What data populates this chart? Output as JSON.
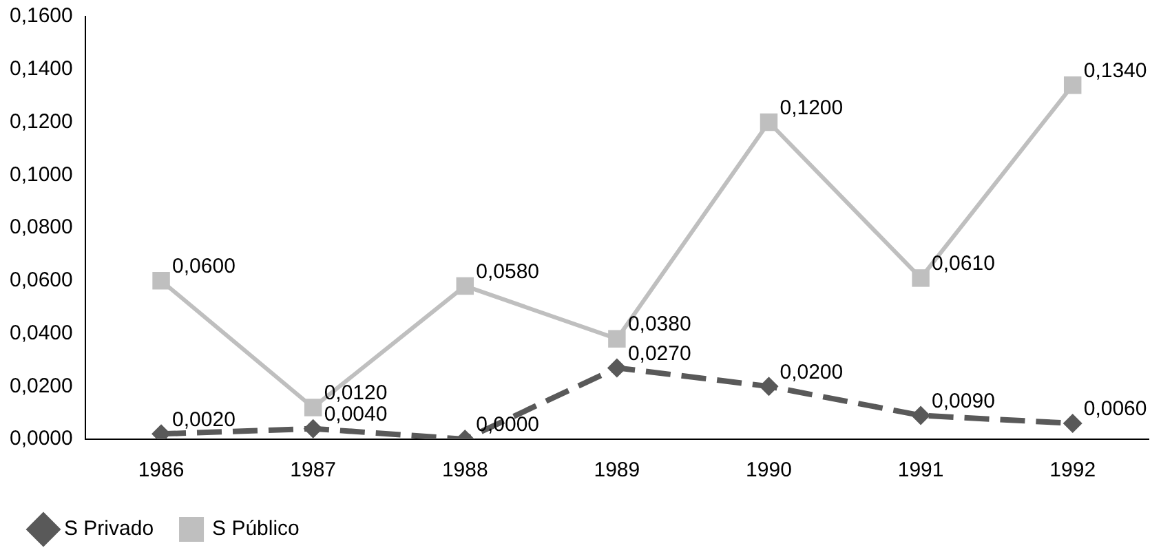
{
  "chart_data": {
    "type": "line",
    "categories": [
      "1986",
      "1987",
      "1988",
      "1989",
      "1990",
      "1991",
      "1992"
    ],
    "series": [
      {
        "name": "S Privado",
        "color": "#595959",
        "marker": "diamond",
        "line_style": "dashed",
        "values": [
          0.002,
          0.004,
          0,
          0.027,
          0.02,
          0.009,
          0.006
        ],
        "value_labels": [
          "0,0020",
          "0,0040",
          "0,0000",
          "0,0270",
          "0,0200",
          "0,0090",
          "0,0060"
        ]
      },
      {
        "name": "S Público",
        "color": "#bfbfbf",
        "marker": "square",
        "line_style": "solid",
        "values": [
          0.06,
          0.012,
          0.058,
          0.038,
          0.12,
          0.061,
          0.134
        ],
        "value_labels": [
          "0,0600",
          "0,0120",
          "0,0580",
          "0,0380",
          "0,1200",
          "0,0610",
          "0,1340"
        ]
      }
    ],
    "ylim": [
      0,
      0.16
    ],
    "yticks": [
      {
        "value": 0,
        "label": "0,0000"
      },
      {
        "value": 0.02,
        "label": "0,0200"
      },
      {
        "value": 0.04,
        "label": "0,0400"
      },
      {
        "value": 0.06,
        "label": "0,0600"
      },
      {
        "value": 0.08,
        "label": "0,0800"
      },
      {
        "value": 0.1,
        "label": "0,1000"
      },
      {
        "value": 0.12,
        "label": "0,1200"
      },
      {
        "value": 0.14,
        "label": "0,1400"
      },
      {
        "value": 0.16,
        "label": "0,1600"
      }
    ],
    "grid": false,
    "legend": "bottom left"
  }
}
